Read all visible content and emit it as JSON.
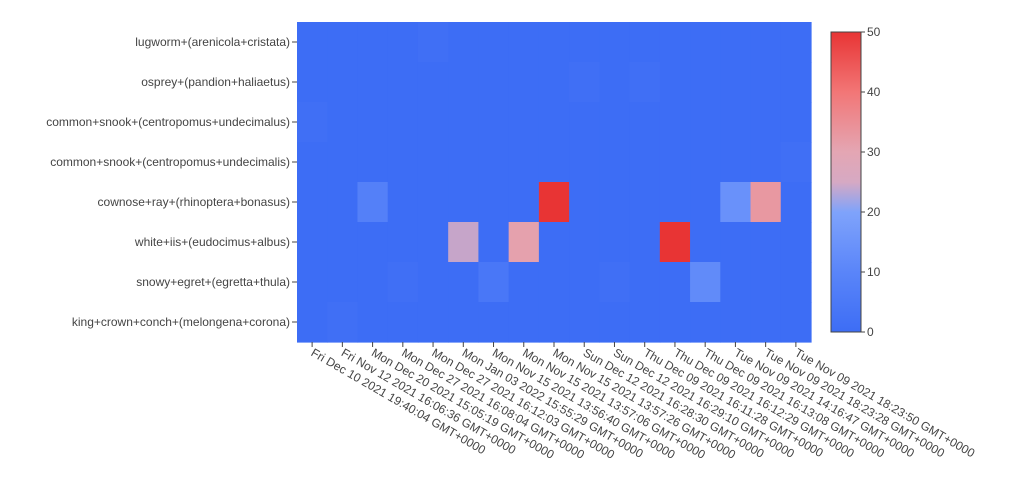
{
  "chart_data": {
    "type": "heatmap",
    "title": "",
    "xlabel": "",
    "ylabel": "",
    "y_categories": [
      "lugworm+(arenicola+cristata)",
      "osprey+(pandion+haliaetus)",
      "common+snook+(centropomus+undecimalus)",
      "common+snook+(centropomus+undecimalis)",
      "cownose+ray+(rhinoptera+bonasus)",
      "white+iis+(eudocimus+albus)",
      "snowy+egret+(egretta+thula)",
      "king+crown+conch+(melongena+corona)"
    ],
    "x_categories": [
      "Fri Dec 10 2021 19:40:04 GMT+0000",
      "Fri Nov 12 2021 16:06:36 GMT+0000",
      "Mon Dec 20 2021 15:05:19 GMT+0000",
      "Mon Dec 27 2021 16:08:04 GMT+0000",
      "Mon Dec 27 2021 16:12:03 GMT+0000",
      "Mon Jan 03 2022 15:55:29 GMT+0000",
      "Mon Nov 15 2021 13:56:40 GMT+0000",
      "Mon Nov 15 2021 13:57:06 GMT+0000",
      "Mon Nov 15 2021 13:57:26 GMT+0000",
      "Sun Dec 12 2021 16:28:30 GMT+0000",
      "Sun Dec 12 2021 16:29:10 GMT+0000",
      "Thu Dec 09 2021 16:11:28 GMT+0000",
      "Thu Dec 09 2021 16:12:29 GMT+0000",
      "Thu Dec 09 2021 16:13:08 GMT+0000",
      "Tue Nov 09 2021 14:16:47 GMT+0000",
      "Tue Nov 09 2021 18:23:28 GMT+0000",
      "Tue Nov 09 2021 18:23:50 GMT+0000"
    ],
    "z": [
      [
        0,
        0,
        0,
        0,
        1,
        0,
        0,
        0,
        0,
        0,
        0,
        0,
        0,
        0,
        0,
        0,
        0
      ],
      [
        0,
        0,
        0,
        0,
        0,
        0,
        0,
        0,
        0,
        1,
        0,
        1,
        0,
        0,
        0,
        0,
        0
      ],
      [
        1,
        0,
        0,
        0,
        0,
        0,
        0,
        0,
        0,
        0,
        0,
        0,
        0,
        0,
        0,
        0,
        0
      ],
      [
        0,
        0,
        0,
        0,
        0,
        0,
        0,
        0,
        0,
        0,
        0,
        0,
        0,
        0,
        0,
        0,
        1
      ],
      [
        0,
        0,
        8,
        0,
        0,
        0,
        0,
        0,
        50,
        0,
        0,
        0,
        0,
        0,
        14,
        33,
        0
      ],
      [
        0,
        0,
        0,
        0,
        0,
        27,
        0,
        31,
        0,
        0,
        0,
        0,
        50,
        0,
        0,
        0,
        0
      ],
      [
        0,
        0,
        0,
        1,
        0,
        0,
        4,
        0,
        0,
        0,
        1,
        0,
        0,
        12,
        0,
        0,
        0
      ],
      [
        0,
        1,
        0,
        0,
        0,
        0,
        0,
        0,
        0,
        0,
        0,
        0,
        0,
        0,
        0,
        0,
        0
      ]
    ],
    "zlim": [
      0,
      50
    ],
    "colorbar_ticks": [
      0,
      10,
      20,
      30,
      40,
      50
    ],
    "colorscale": [
      "#3d6df5",
      "#5a85f9",
      "#7fa3fb",
      "#e4a6b3",
      "#f27676",
      "#e83434"
    ],
    "grid": false,
    "legend": "colorbar-right"
  }
}
